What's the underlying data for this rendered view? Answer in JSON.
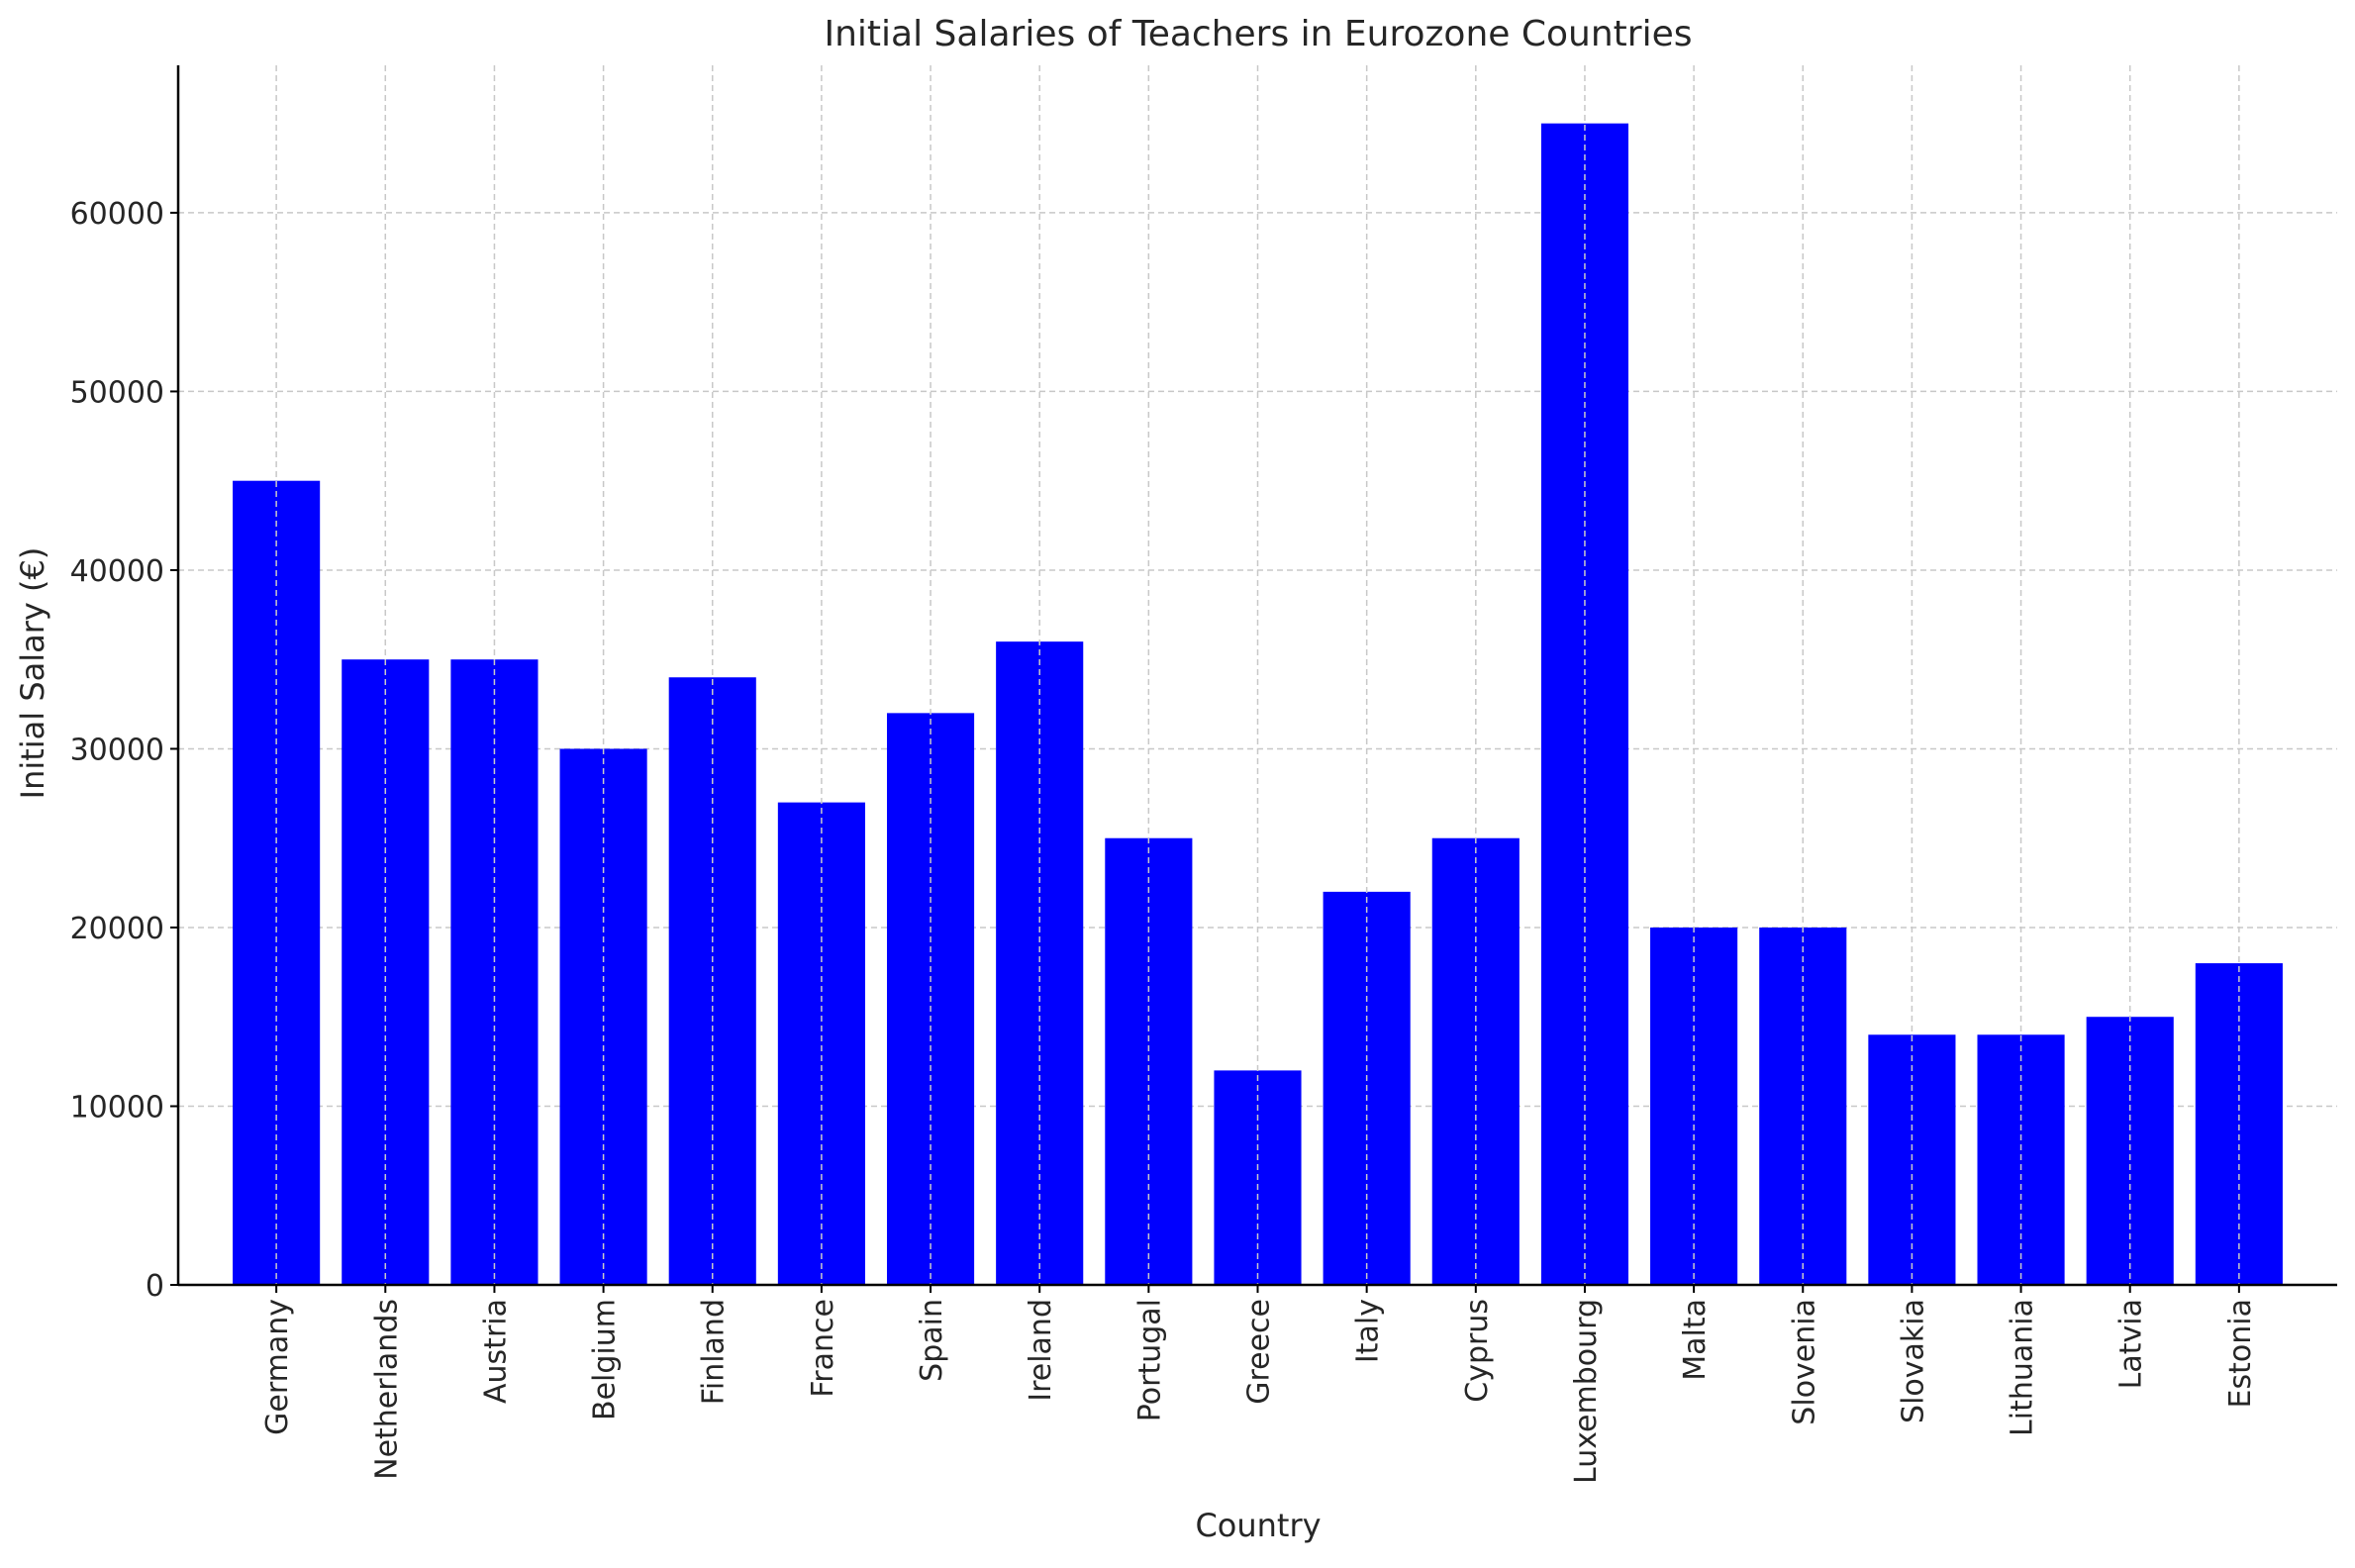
{
  "chart_data": {
    "type": "bar",
    "title": "Initial Salaries of Teachers in Eurozone Countries",
    "xlabel": "Country",
    "ylabel": "Initial Salary (€)",
    "categories": [
      "Germany",
      "Netherlands",
      "Austria",
      "Belgium",
      "Finland",
      "France",
      "Spain",
      "Ireland",
      "Portugal",
      "Greece",
      "Italy",
      "Cyprus",
      "Luxembourg",
      "Malta",
      "Slovenia",
      "Slovakia",
      "Lithuania",
      "Latvia",
      "Estonia"
    ],
    "values": [
      45000,
      35000,
      35000,
      30000,
      34000,
      27000,
      32000,
      36000,
      25000,
      12000,
      22000,
      25000,
      65000,
      20000,
      20000,
      14000,
      14000,
      15000,
      18000
    ],
    "ylim": [
      0,
      68250
    ],
    "yticks": [
      "0",
      "10000",
      "20000",
      "30000",
      "40000",
      "50000",
      "60000"
    ],
    "grid": true,
    "bar_color": "#0000ff",
    "grid_color": "#c8c8c8",
    "axis_color": "#000000"
  }
}
